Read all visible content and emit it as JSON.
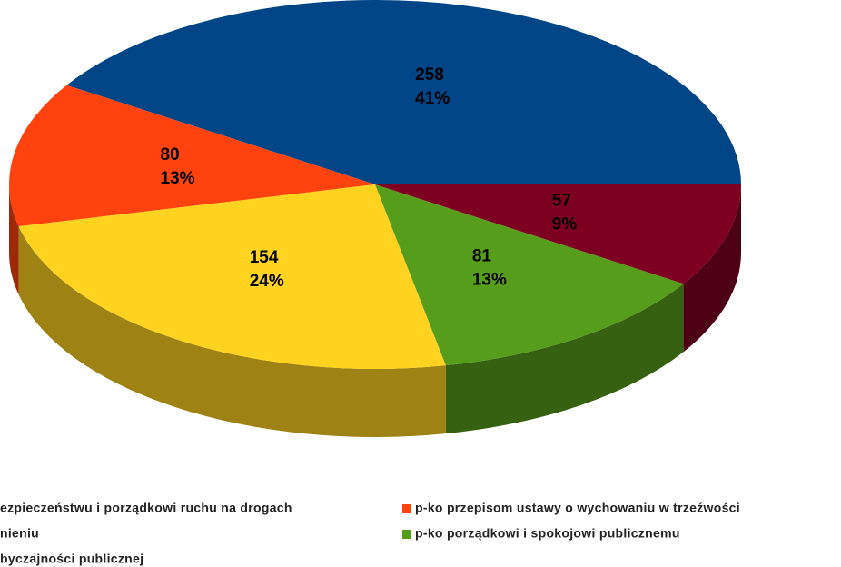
{
  "chart_data": {
    "type": "pie3d",
    "categories": [
      "ezpieczeństwu i porządkowi ruchu na drogach",
      "p-ko przepisom ustawy o wychowaniu w trzeźwości",
      "nieniu",
      "p-ko porządkowi i spokojowi publicznemu",
      "byczajności publicznej"
    ],
    "values": [
      258,
      80,
      154,
      81,
      57
    ],
    "percent_labels": [
      "41%",
      "13%",
      "24%",
      "13%",
      "9%"
    ],
    "colors": [
      "#004586",
      "#ff420e",
      "#ffd320",
      "#579d1c",
      "#7e0021"
    ],
    "legend": "bottom"
  }
}
